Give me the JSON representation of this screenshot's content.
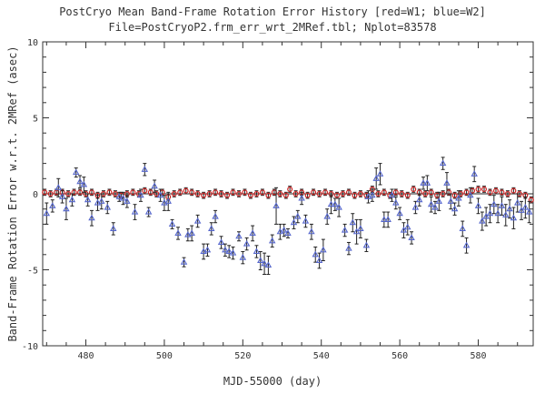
{
  "chart_data": {
    "type": "scatter",
    "title": "PostCryo Mean Band-Frame Rotation Error History [red=W1; blue=W2]",
    "subtitle": "File=PostCryoP2.frm_err_wrt_2MRef.tbl; Nplot=83578",
    "xlabel": "MJD-55000 (day)",
    "ylabel": "Band-Frame Rotation Error w.r.t. 2MRef (asec)",
    "xlim": [
      469,
      594
    ],
    "ylim": [
      -10,
      10
    ],
    "xticks": [
      480,
      500,
      520,
      540,
      560,
      580
    ],
    "yticks": [
      -10,
      -5,
      0,
      5,
      10
    ],
    "grid": false,
    "series": [
      {
        "name": "W1",
        "color": "#cc2222",
        "marker": "circle",
        "points": [
          [
            469.5,
            0.1,
            0.2
          ],
          [
            471,
            0.0,
            0.2
          ],
          [
            472.5,
            0.1,
            0.2
          ],
          [
            474,
            0.1,
            0.2
          ],
          [
            475.5,
            0.0,
            0.2
          ],
          [
            477,
            0.1,
            0.2
          ],
          [
            478.5,
            0.1,
            0.2
          ],
          [
            480,
            0.0,
            0.2
          ],
          [
            481.5,
            0.1,
            0.2
          ],
          [
            483,
            -0.1,
            0.2
          ],
          [
            484.5,
            0.0,
            0.2
          ],
          [
            486,
            0.1,
            0.2
          ],
          [
            487.5,
            0.0,
            0.2
          ],
          [
            489,
            -0.1,
            0.2
          ],
          [
            490.5,
            0.0,
            0.2
          ],
          [
            492,
            0.1,
            0.2
          ],
          [
            493.5,
            0.0,
            0.2
          ],
          [
            495,
            0.2,
            0.2
          ],
          [
            496.5,
            0.1,
            0.2
          ],
          [
            498,
            0.0,
            0.2
          ],
          [
            499.5,
            0.1,
            0.2
          ],
          [
            501,
            -0.2,
            0.2
          ],
          [
            502.5,
            0.0,
            0.2
          ],
          [
            504,
            0.1,
            0.2
          ],
          [
            505.5,
            0.2,
            0.2
          ],
          [
            507,
            0.1,
            0.2
          ],
          [
            508.5,
            0.0,
            0.2
          ],
          [
            510,
            -0.1,
            0.2
          ],
          [
            511.5,
            0.0,
            0.2
          ],
          [
            513,
            0.1,
            0.2
          ],
          [
            514.5,
            0.0,
            0.2
          ],
          [
            516,
            -0.1,
            0.2
          ],
          [
            517.5,
            0.1,
            0.2
          ],
          [
            519,
            0.0,
            0.2
          ],
          [
            520.5,
            0.1,
            0.2
          ],
          [
            522,
            -0.1,
            0.2
          ],
          [
            523.5,
            0.0,
            0.2
          ],
          [
            525,
            0.1,
            0.2
          ],
          [
            526.5,
            -0.1,
            0.2
          ],
          [
            528,
            0.1,
            0.2
          ],
          [
            529.5,
            0.0,
            0.2
          ],
          [
            531,
            -0.1,
            0.2
          ],
          [
            532,
            0.3,
            0.2
          ],
          [
            533.5,
            0.0,
            0.2
          ],
          [
            535,
            0.1,
            0.2
          ],
          [
            536.5,
            -0.1,
            0.2
          ],
          [
            538,
            0.1,
            0.2
          ],
          [
            539.5,
            0.0,
            0.2
          ],
          [
            541,
            0.1,
            0.2
          ],
          [
            542.5,
            0.0,
            0.2
          ],
          [
            544,
            -0.1,
            0.2
          ],
          [
            545.5,
            0.0,
            0.2
          ],
          [
            547,
            0.1,
            0.2
          ],
          [
            548.5,
            -0.1,
            0.2
          ],
          [
            550,
            0.0,
            0.2
          ],
          [
            551.5,
            -0.1,
            0.2
          ],
          [
            553,
            0.3,
            0.2
          ],
          [
            554.5,
            0.0,
            0.2
          ],
          [
            556,
            0.1,
            0.2
          ],
          [
            557.5,
            -0.1,
            0.2
          ],
          [
            559,
            0.1,
            0.2
          ],
          [
            560.5,
            0.0,
            0.2
          ],
          [
            562,
            -0.1,
            0.2
          ],
          [
            563.5,
            0.3,
            0.2
          ],
          [
            565,
            0.1,
            0.2
          ],
          [
            566.5,
            0.0,
            0.2
          ],
          [
            568,
            0.1,
            0.2
          ],
          [
            569.5,
            -0.1,
            0.2
          ],
          [
            571,
            0.0,
            0.2
          ],
          [
            572.5,
            0.1,
            0.2
          ],
          [
            574,
            -0.1,
            0.2
          ],
          [
            575.5,
            0.0,
            0.2
          ],
          [
            577,
            0.1,
            0.2
          ],
          [
            578.5,
            0.2,
            0.2
          ],
          [
            580,
            0.3,
            0.2
          ],
          [
            581.5,
            0.3,
            0.2
          ],
          [
            583,
            0.1,
            0.2
          ],
          [
            584.5,
            0.2,
            0.2
          ],
          [
            586,
            0.1,
            0.2
          ],
          [
            587.5,
            0.0,
            0.2
          ],
          [
            589,
            0.2,
            0.2
          ],
          [
            590.5,
            0.0,
            0.2
          ],
          [
            592,
            -0.1,
            0.2
          ],
          [
            593.5,
            -0.4,
            0.2
          ]
        ]
      },
      {
        "name": "W2",
        "color": "#5566cc",
        "marker": "triangle",
        "points": [
          [
            470,
            -1.3,
            0.7
          ],
          [
            471.5,
            -0.8,
            0.4
          ],
          [
            473,
            0.4,
            0.6
          ],
          [
            474,
            -0.2,
            0.4
          ],
          [
            475,
            -1.0,
            0.7
          ],
          [
            476.5,
            -0.4,
            0.4
          ],
          [
            477.5,
            1.4,
            0.3
          ],
          [
            478.5,
            0.8,
            0.4
          ],
          [
            479.5,
            0.6,
            0.5
          ],
          [
            480.5,
            -0.4,
            0.4
          ],
          [
            481.5,
            -1.6,
            0.5
          ],
          [
            483,
            -0.6,
            0.5
          ],
          [
            484,
            -0.5,
            0.5
          ],
          [
            485.5,
            -0.9,
            0.4
          ],
          [
            487,
            -2.3,
            0.4
          ],
          [
            488.5,
            -0.2,
            0.3
          ],
          [
            489.5,
            -0.3,
            0.4
          ],
          [
            490.5,
            -0.5,
            0.4
          ],
          [
            492.5,
            -1.2,
            0.5
          ],
          [
            494,
            -0.1,
            0.4
          ],
          [
            495,
            1.6,
            0.4
          ],
          [
            496,
            -1.2,
            0.3
          ],
          [
            497.5,
            0.5,
            0.4
          ],
          [
            499,
            -0.1,
            0.4
          ],
          [
            500,
            -0.6,
            0.5
          ],
          [
            501,
            -0.5,
            0.6
          ],
          [
            502,
            -2.0,
            0.3
          ],
          [
            503.5,
            -2.6,
            0.4
          ],
          [
            505,
            -4.5,
            0.3
          ],
          [
            506,
            -2.7,
            0.4
          ],
          [
            507,
            -2.6,
            0.5
          ],
          [
            508.5,
            -1.8,
            0.4
          ],
          [
            510,
            -3.8,
            0.5
          ],
          [
            511,
            -3.7,
            0.4
          ],
          [
            512,
            -2.3,
            0.4
          ],
          [
            513,
            -1.5,
            0.4
          ],
          [
            514.5,
            -3.2,
            0.4
          ],
          [
            515.5,
            -3.7,
            0.4
          ],
          [
            516.5,
            -3.8,
            0.4
          ],
          [
            517.5,
            -3.9,
            0.4
          ],
          [
            519,
            -2.8,
            0.3
          ],
          [
            520,
            -4.2,
            0.4
          ],
          [
            521,
            -3.3,
            0.4
          ],
          [
            522.5,
            -2.6,
            0.5
          ],
          [
            523.5,
            -3.8,
            0.4
          ],
          [
            524.5,
            -4.4,
            0.6
          ],
          [
            525.5,
            -4.6,
            0.7
          ],
          [
            526.5,
            -4.7,
            0.6
          ],
          [
            527.5,
            -3.1,
            0.4
          ],
          [
            528.5,
            -0.8,
            1.2
          ],
          [
            529.5,
            -2.5,
            0.5
          ],
          [
            530.5,
            -2.4,
            0.4
          ],
          [
            531.5,
            -2.6,
            0.3
          ],
          [
            533,
            -1.9,
            0.4
          ],
          [
            534,
            -1.5,
            0.4
          ],
          [
            535,
            -0.3,
            0.4
          ],
          [
            536,
            -1.8,
            0.4
          ],
          [
            537.5,
            -2.5,
            0.5
          ],
          [
            538.5,
            -4.0,
            0.5
          ],
          [
            539.5,
            -4.4,
            0.5
          ],
          [
            540.5,
            -3.7,
            0.7
          ],
          [
            541.5,
            -1.5,
            0.5
          ],
          [
            542.5,
            -0.7,
            0.6
          ],
          [
            543.5,
            -0.7,
            0.4
          ],
          [
            544.5,
            -0.9,
            0.6
          ],
          [
            546,
            -2.4,
            0.4
          ],
          [
            547,
            -3.6,
            0.4
          ],
          [
            548,
            -1.9,
            0.6
          ],
          [
            549,
            -2.5,
            0.8
          ],
          [
            550,
            -2.3,
            0.6
          ],
          [
            551.5,
            -3.4,
            0.4
          ],
          [
            552,
            -0.2,
            0.4
          ],
          [
            553,
            -0.1,
            0.4
          ],
          [
            554,
            1.0,
            0.7
          ],
          [
            555,
            1.3,
            0.7
          ],
          [
            556,
            -1.7,
            0.5
          ],
          [
            557,
            -1.7,
            0.5
          ],
          [
            558,
            -0.1,
            0.4
          ],
          [
            559,
            -0.6,
            0.4
          ],
          [
            560,
            -1.3,
            0.4
          ],
          [
            561,
            -2.4,
            0.5
          ],
          [
            562,
            -2.2,
            0.5
          ],
          [
            563,
            -2.9,
            0.4
          ],
          [
            564,
            -0.9,
            0.4
          ],
          [
            565,
            -0.4,
            0.4
          ],
          [
            566,
            0.7,
            0.4
          ],
          [
            567,
            0.7,
            0.5
          ],
          [
            568,
            -0.7,
            0.5
          ],
          [
            569,
            -0.9,
            0.4
          ],
          [
            570,
            -0.5,
            0.6
          ],
          [
            571,
            2.0,
            0.4
          ],
          [
            572,
            0.7,
            0.7
          ],
          [
            573,
            -0.5,
            0.5
          ],
          [
            574,
            -1.0,
            0.4
          ],
          [
            575,
            -0.3,
            0.5
          ],
          [
            576,
            -2.3,
            0.5
          ],
          [
            577,
            -3.4,
            0.5
          ],
          [
            578,
            -0.1,
            0.5
          ],
          [
            579,
            1.3,
            0.5
          ],
          [
            580,
            -0.8,
            0.5
          ],
          [
            581,
            -1.8,
            0.6
          ],
          [
            582,
            -1.5,
            0.6
          ],
          [
            583,
            -1.3,
            0.6
          ],
          [
            584,
            -0.7,
            0.6
          ],
          [
            585,
            -1.3,
            0.6
          ],
          [
            586,
            -0.8,
            0.6
          ],
          [
            587,
            -1.4,
            0.7
          ],
          [
            588,
            -1.0,
            0.6
          ],
          [
            589,
            -1.6,
            0.7
          ],
          [
            590,
            -0.6,
            0.6
          ],
          [
            591,
            -1.1,
            0.6
          ],
          [
            592,
            -0.9,
            0.7
          ],
          [
            593,
            -1.2,
            0.7
          ]
        ]
      }
    ]
  }
}
